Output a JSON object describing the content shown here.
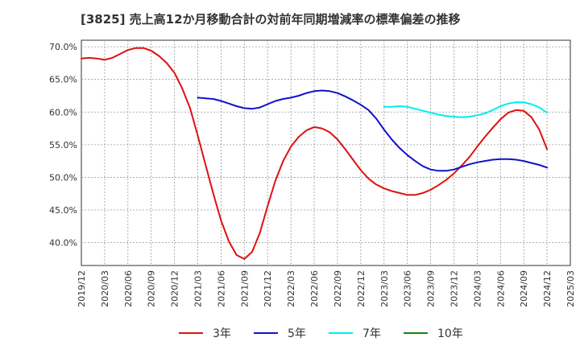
{
  "chart_data": {
    "type": "line",
    "title": "[3825]  売上高12か月移動合計の対前年同期増減率の標準偏差の推移",
    "xlabel": "",
    "ylabel": "",
    "ylim": [
      36.5,
      71
    ],
    "y_ticks": [
      "70.0%",
      "65.0%",
      "60.0%",
      "55.0%",
      "50.0%",
      "45.0%",
      "40.0%"
    ],
    "y_tick_values": [
      70,
      65,
      60,
      55,
      50,
      45,
      40
    ],
    "x_start": "2019-12",
    "x_ticks": [
      "2019/12",
      "2020/03",
      "2020/06",
      "2020/09",
      "2020/12",
      "2021/03",
      "2021/06",
      "2021/09",
      "2021/12",
      "2022/03",
      "2022/06",
      "2022/09",
      "2022/12",
      "2023/03",
      "2023/06",
      "2023/09",
      "2023/12",
      "2024/03",
      "2024/06",
      "2024/09",
      "2024/12",
      "2025/03"
    ],
    "grid": true,
    "legend_position": "bottom",
    "series": [
      {
        "name": "3年",
        "color": "#dd1111",
        "x": [
          "2019-12",
          "2020-01",
          "2020-02",
          "2020-03",
          "2020-04",
          "2020-05",
          "2020-06",
          "2020-07",
          "2020-08",
          "2020-09",
          "2020-10",
          "2020-11",
          "2020-12",
          "2021-01",
          "2021-02",
          "2021-03",
          "2021-04",
          "2021-05",
          "2021-06",
          "2021-07",
          "2021-08",
          "2021-09",
          "2021-10",
          "2021-11",
          "2021-12",
          "2022-01",
          "2022-02",
          "2022-03",
          "2022-04",
          "2022-05",
          "2022-06",
          "2022-07",
          "2022-08",
          "2022-09",
          "2022-10",
          "2022-11",
          "2022-12",
          "2023-01",
          "2023-02",
          "2023-03",
          "2023-04",
          "2023-05",
          "2023-06",
          "2023-07",
          "2023-08",
          "2023-09",
          "2023-10",
          "2023-11",
          "2023-12",
          "2024-01",
          "2024-02",
          "2024-03",
          "2024-04",
          "2024-05",
          "2024-06",
          "2024-07",
          "2024-08",
          "2024-09",
          "2024-10",
          "2024-11",
          "2024-12"
        ],
        "values": [
          68.2,
          68.3,
          68.2,
          68.0,
          68.3,
          68.9,
          69.5,
          69.8,
          69.8,
          69.4,
          68.6,
          67.5,
          66.0,
          63.6,
          60.6,
          56.4,
          51.9,
          47.5,
          43.4,
          40.2,
          38.1,
          37.5,
          38.6,
          41.5,
          45.6,
          49.5,
          52.5,
          54.7,
          56.2,
          57.2,
          57.7,
          57.5,
          56.9,
          55.8,
          54.3,
          52.7,
          51.1,
          49.8,
          48.9,
          48.3,
          47.9,
          47.6,
          47.3,
          47.3,
          47.6,
          48.1,
          48.8,
          49.6,
          50.6,
          51.8,
          53.1,
          54.7,
          56.2,
          57.6,
          58.9,
          59.9,
          60.3,
          60.2,
          59.2,
          57.3,
          54.3
        ]
      },
      {
        "name": "5年",
        "color": "#1111cc",
        "x": [
          "2021-03",
          "2021-04",
          "2021-05",
          "2021-06",
          "2021-07",
          "2021-08",
          "2021-09",
          "2021-10",
          "2021-11",
          "2021-12",
          "2022-01",
          "2022-02",
          "2022-03",
          "2022-04",
          "2022-05",
          "2022-06",
          "2022-07",
          "2022-08",
          "2022-09",
          "2022-10",
          "2022-11",
          "2022-12",
          "2023-01",
          "2023-02",
          "2023-03",
          "2023-04",
          "2023-05",
          "2023-06",
          "2023-07",
          "2023-08",
          "2023-09",
          "2023-10",
          "2023-11",
          "2023-12",
          "2024-01",
          "2024-02",
          "2024-03",
          "2024-04",
          "2024-05",
          "2024-06",
          "2024-07",
          "2024-08",
          "2024-09",
          "2024-10",
          "2024-11",
          "2024-12"
        ],
        "values": [
          62.2,
          62.1,
          62.0,
          61.7,
          61.3,
          60.9,
          60.6,
          60.5,
          60.7,
          61.2,
          61.7,
          62.0,
          62.2,
          62.5,
          62.9,
          63.2,
          63.3,
          63.2,
          62.9,
          62.4,
          61.8,
          61.1,
          60.3,
          59.0,
          57.3,
          55.8,
          54.5,
          53.4,
          52.5,
          51.7,
          51.2,
          51.0,
          51.0,
          51.2,
          51.6,
          52.0,
          52.3,
          52.5,
          52.7,
          52.8,
          52.8,
          52.7,
          52.5,
          52.2,
          51.9,
          51.5
        ]
      },
      {
        "name": "7年",
        "color": "#00eeee",
        "x": [
          "2023-03",
          "2023-04",
          "2023-05",
          "2023-06",
          "2023-07",
          "2023-08",
          "2023-09",
          "2023-10",
          "2023-11",
          "2023-12",
          "2024-01",
          "2024-02",
          "2024-03",
          "2024-04",
          "2024-05",
          "2024-06",
          "2024-07",
          "2024-08",
          "2024-09",
          "2024-10",
          "2024-11",
          "2024-12"
        ],
        "values": [
          60.8,
          60.8,
          60.9,
          60.8,
          60.5,
          60.2,
          59.9,
          59.6,
          59.4,
          59.3,
          59.2,
          59.3,
          59.5,
          59.8,
          60.3,
          60.9,
          61.3,
          61.5,
          61.5,
          61.2,
          60.7,
          59.9
        ]
      },
      {
        "name": "10年",
        "color": "#118811",
        "x": [],
        "values": []
      }
    ]
  }
}
